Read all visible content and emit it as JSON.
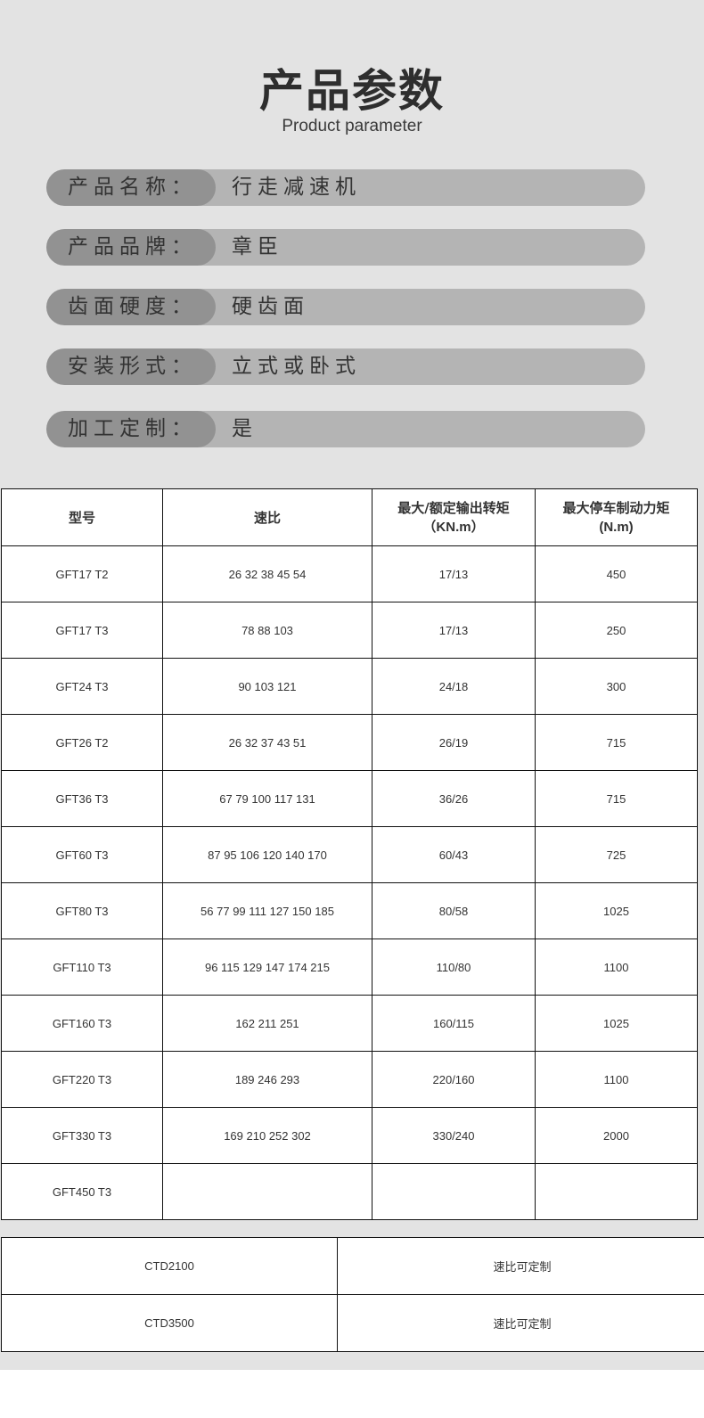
{
  "header": {
    "title": "产品参数",
    "subtitle": "Product parameter"
  },
  "specs": [
    {
      "label": "产品名称：",
      "value": "行走减速机"
    },
    {
      "label": "产品品牌：",
      "value": "章臣"
    },
    {
      "label": "齿面硬度：",
      "value": "硬齿面"
    },
    {
      "label": "安装形式：",
      "value": "立式或卧式"
    },
    {
      "label": "加工定制：",
      "value": "是"
    }
  ],
  "colors": {
    "background": "#e3e3e3",
    "pill_label": "#929292",
    "pill_value": "#b4b4b4",
    "text": "#333333"
  },
  "table": {
    "headers": [
      {
        "line1": "型号",
        "line2": ""
      },
      {
        "line1": "速比",
        "line2": ""
      },
      {
        "line1": "最大/额定输出转矩",
        "line2": "（KN.m）"
      },
      {
        "line1": "最大停车制动力矩",
        "line2": "(N.m)"
      }
    ],
    "rows": [
      [
        "GFT17 T2",
        "26 32 38 45 54",
        "17/13",
        "450"
      ],
      [
        "GFT17 T3",
        "78 88 103",
        "17/13",
        "250"
      ],
      [
        "GFT24 T3",
        "90 103 121",
        "24/18",
        "300"
      ],
      [
        "GFT26 T2",
        "26 32 37 43 51",
        "26/19",
        "715"
      ],
      [
        "GFT36 T3",
        "67 79 100 117 131",
        "36/26",
        "715"
      ],
      [
        "GFT60 T3",
        "87 95 106 120 140 170",
        "60/43",
        "725"
      ],
      [
        "GFT80 T3",
        "56 77 99 111 127 150 185",
        "80/58",
        "1025"
      ],
      [
        "GFT110 T3",
        "96 115 129 147 174 215",
        "110/80",
        "1100"
      ],
      [
        "GFT160 T3",
        "162 211 251",
        "160/115",
        "1025"
      ],
      [
        "GFT220 T3",
        "189 246 293",
        "220/160",
        "1100"
      ],
      [
        "GFT330 T3",
        "169 210 252 302",
        "330/240",
        "2000"
      ],
      [
        "GFT450 T3",
        "",
        "",
        ""
      ]
    ]
  },
  "table2": {
    "rows": [
      [
        "CTD2100",
        "速比可定制"
      ],
      [
        "CTD3500",
        "速比可定制"
      ]
    ]
  }
}
